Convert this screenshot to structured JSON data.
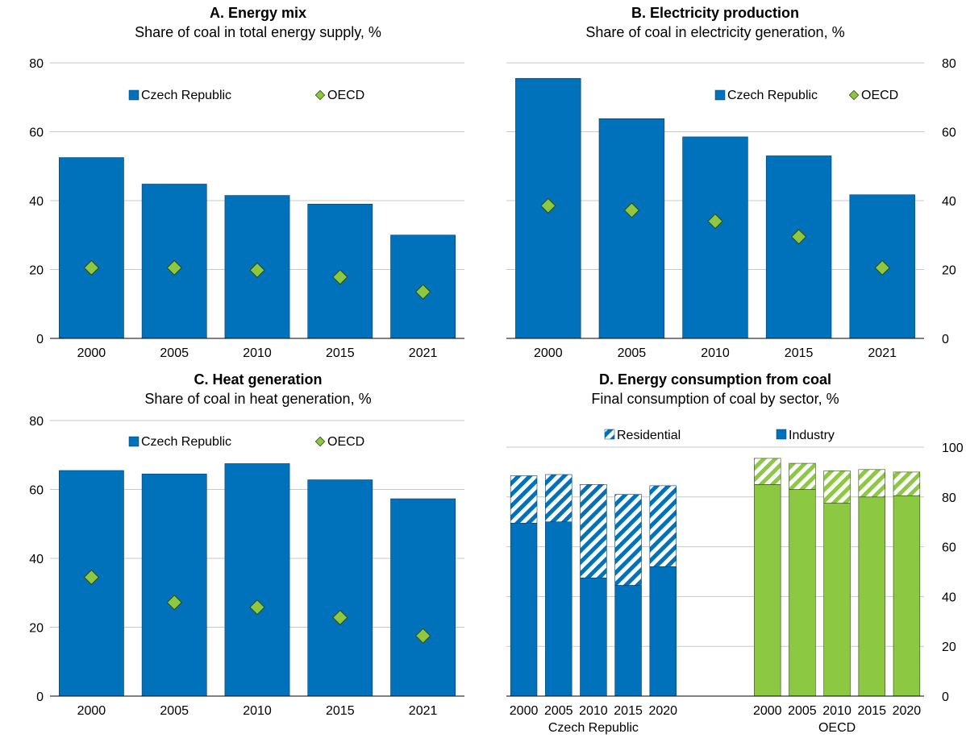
{
  "colors": {
    "czech": "#0072bc",
    "czech_edge": "#003d66",
    "oecd": "#8cc841",
    "oecd_edge": "#2d4a10",
    "grid": "#c8c8c8",
    "hatch_bg": "#ffffff"
  },
  "chart_data": [
    {
      "id": "A",
      "type": "bar",
      "title": "A. Energy mix",
      "subtitle": "Share of coal in total energy supply, %",
      "categories": [
        "2000",
        "2005",
        "2010",
        "2015",
        "2021"
      ],
      "series": [
        {
          "name": "Czech Republic",
          "kind": "bar",
          "values": [
            52.5,
            44.8,
            41.5,
            39.0,
            30.0
          ]
        },
        {
          "name": "OECD",
          "kind": "marker",
          "values": [
            20.5,
            20.5,
            19.8,
            17.8,
            13.5
          ]
        }
      ],
      "ylim": [
        0,
        80
      ],
      "yticks": [
        "0",
        "20",
        "40",
        "60",
        "80"
      ],
      "yaxis_side": "left",
      "grid": true,
      "legend": "top"
    },
    {
      "id": "B",
      "type": "bar",
      "title": "B. Electricity production",
      "subtitle": "Share of coal in electricity generation, %",
      "categories": [
        "2000",
        "2005",
        "2010",
        "2015",
        "2021"
      ],
      "series": [
        {
          "name": "Czech Republic",
          "kind": "bar",
          "values": [
            75.5,
            63.8,
            58.5,
            53.0,
            41.7
          ]
        },
        {
          "name": "OECD",
          "kind": "marker",
          "values": [
            38.5,
            37.2,
            34.0,
            29.5,
            20.5
          ]
        }
      ],
      "ylim": [
        0,
        80
      ],
      "yticks": [
        "0",
        "20",
        "40",
        "60",
        "80"
      ],
      "yaxis_side": "right",
      "grid": true,
      "legend": "top"
    },
    {
      "id": "C",
      "type": "bar",
      "title": "C. Heat generation",
      "subtitle": "Share of coal in heat generation, %",
      "categories": [
        "2000",
        "2005",
        "2010",
        "2015",
        "2021"
      ],
      "series": [
        {
          "name": "Czech Republic",
          "kind": "bar",
          "values": [
            65.5,
            64.5,
            67.5,
            62.8,
            57.3
          ]
        },
        {
          "name": "OECD",
          "kind": "marker",
          "values": [
            34.5,
            27.2,
            25.8,
            22.8,
            17.5
          ]
        }
      ],
      "ylim": [
        0,
        80
      ],
      "yticks": [
        "0",
        "20",
        "40",
        "60",
        "80"
      ],
      "yaxis_side": "left",
      "grid": true,
      "legend": "top"
    },
    {
      "id": "D",
      "type": "bar",
      "stacked": true,
      "title": "D. Energy consumption from coal",
      "subtitle": "Final consumption of coal by sector, %",
      "groups": [
        {
          "label": "Czech Republic",
          "categories": [
            "2000",
            "2005",
            "2010",
            "2015",
            "2020"
          ],
          "industry": [
            69.5,
            70.0,
            47.5,
            44.5,
            52.0
          ],
          "residential": [
            19.0,
            19.0,
            37.5,
            36.5,
            32.5
          ]
        },
        {
          "label": "OECD",
          "categories": [
            "2000",
            "2005",
            "2010",
            "2015",
            "2020"
          ],
          "industry": [
            85.0,
            83.0,
            77.5,
            80.0,
            80.5
          ],
          "residential": [
            10.5,
            10.5,
            13.0,
            11.0,
            9.5
          ]
        }
      ],
      "series": [
        {
          "name": "Residential"
        },
        {
          "name": "Industry"
        }
      ],
      "ylim": [
        0,
        100
      ],
      "yticks": [
        "0",
        "20",
        "40",
        "60",
        "80",
        "100"
      ],
      "yaxis_side": "right",
      "grid": true,
      "legend": "top"
    }
  ]
}
